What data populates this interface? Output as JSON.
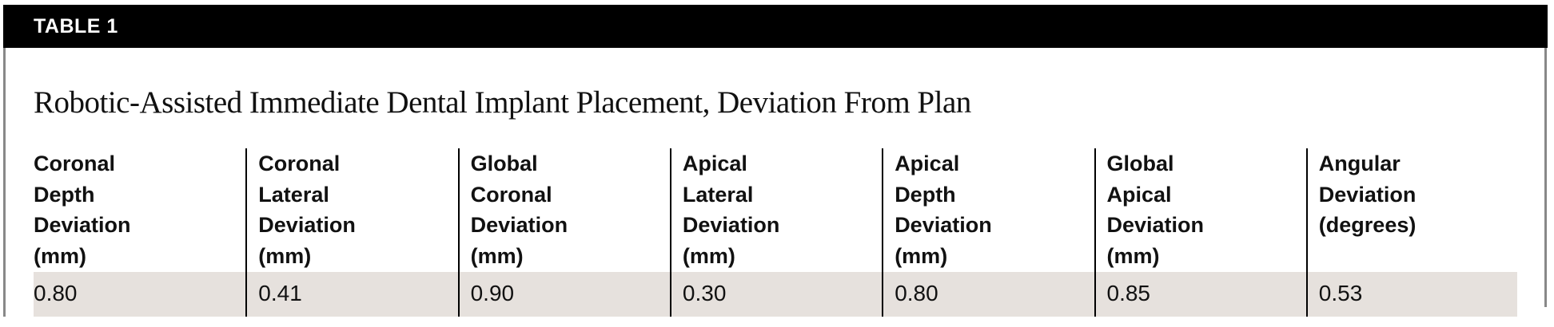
{
  "label": "TABLE 1",
  "title": "Robotic-Assisted Immediate Dental Implant Placement, Deviation From Plan",
  "columns": [
    {
      "header": "Coronal\nDepth\nDeviation\n(mm)",
      "value": "0.80"
    },
    {
      "header": "Coronal\nLateral\nDeviation\n(mm)",
      "value": "0.41"
    },
    {
      "header": "Global\nCoronal\nDeviation\n(mm)",
      "value": "0.90"
    },
    {
      "header": "Apical\nLateral\nDeviation\n(mm)",
      "value": "0.30"
    },
    {
      "header": "Apical\nDepth\nDeviation\n(mm)",
      "value": "0.80"
    },
    {
      "header": "Global\nApical\nDeviation\n(mm)",
      "value": "0.85"
    },
    {
      "header": "Angular\nDeviation\n(degrees)",
      "value": "0.53"
    }
  ],
  "colors": {
    "header_bar": "#000000",
    "row_fill": "#e6e1dd"
  }
}
